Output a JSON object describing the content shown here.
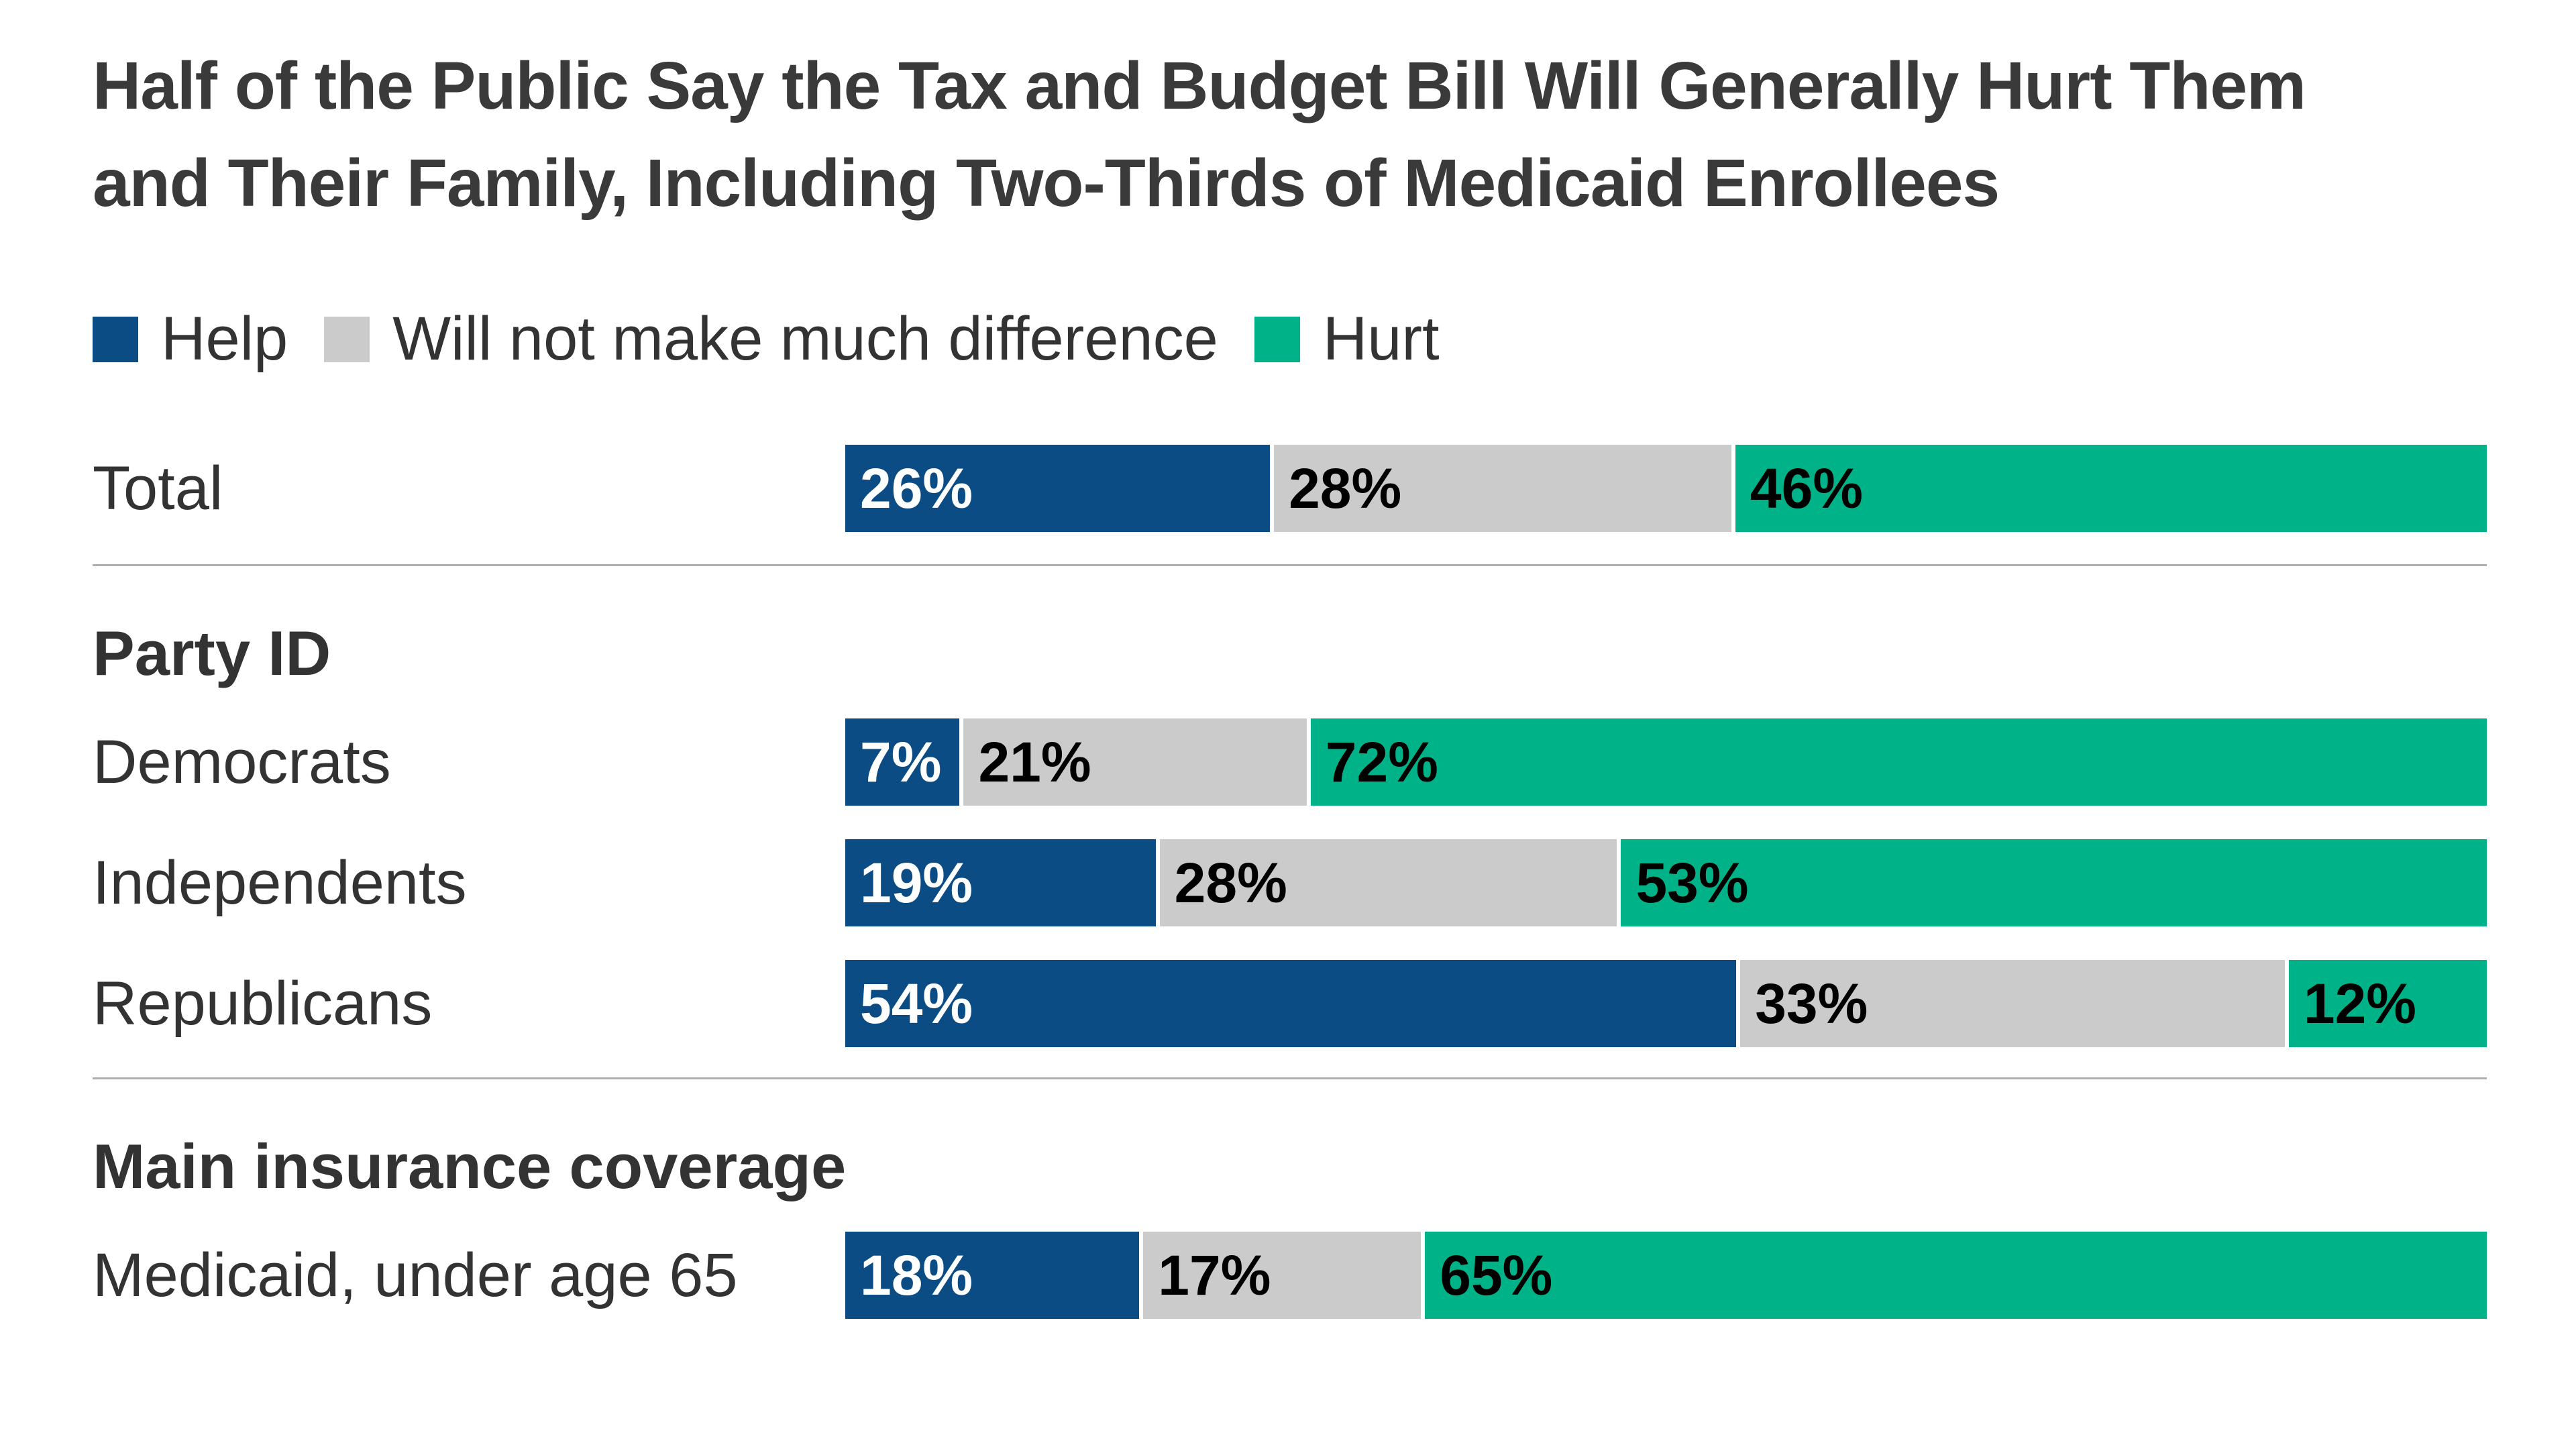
{
  "title": {
    "line1": "Half of the Public Say the Tax and Budget Bill Will Generally Hurt Them",
    "line2": "and Their Family, Including Two-Thirds of Medicaid Enrollees"
  },
  "legend": [
    {
      "label": "Help",
      "color": "#0b4c85"
    },
    {
      "label": "Will not make much difference",
      "color": "#cbcbcb"
    },
    {
      "label": "Hurt",
      "color": "#00b287"
    }
  ],
  "colors": {
    "help": "#0b4c85",
    "neutral": "#cbcbcb",
    "hurt": "#00b287",
    "title_text": "#3a3a3a",
    "body_text": "#333333",
    "divider": "#aeaeae",
    "label_on_help": "#ffffff",
    "label_on_neutral": "#000000",
    "label_on_hurt": "#000000"
  },
  "sections": {
    "party_header": "Party ID",
    "insurance_header": "Main insurance coverage"
  },
  "rows": {
    "total": {
      "label": "Total",
      "segments": [
        {
          "series": "Help",
          "value": 26,
          "label": "26%",
          "color": "#0b4c85",
          "text": "#ffffff"
        },
        {
          "series": "Will not make much difference",
          "value": 28,
          "label": "28%",
          "color": "#cbcbcb",
          "text": "#000000"
        },
        {
          "series": "Hurt",
          "value": 46,
          "label": "46%",
          "color": "#00b287",
          "text": "#000000"
        }
      ]
    },
    "democrats": {
      "label": "Democrats",
      "segments": [
        {
          "series": "Help",
          "value": 7,
          "label": "7%",
          "color": "#0b4c85",
          "text": "#ffffff"
        },
        {
          "series": "Will not make much difference",
          "value": 21,
          "label": "21%",
          "color": "#cbcbcb",
          "text": "#000000"
        },
        {
          "series": "Hurt",
          "value": 72,
          "label": "72%",
          "color": "#00b287",
          "text": "#000000"
        }
      ]
    },
    "independents": {
      "label": "Independents",
      "segments": [
        {
          "series": "Help",
          "value": 19,
          "label": "19%",
          "color": "#0b4c85",
          "text": "#ffffff"
        },
        {
          "series": "Will not make much difference",
          "value": 28,
          "label": "28%",
          "color": "#cbcbcb",
          "text": "#000000"
        },
        {
          "series": "Hurt",
          "value": 53,
          "label": "53%",
          "color": "#00b287",
          "text": "#000000"
        }
      ]
    },
    "republicans": {
      "label": "Republicans",
      "segments": [
        {
          "series": "Help",
          "value": 54,
          "label": "54%",
          "color": "#0b4c85",
          "text": "#ffffff"
        },
        {
          "series": "Will not make much difference",
          "value": 33,
          "label": "33%",
          "color": "#cbcbcb",
          "text": "#000000"
        },
        {
          "series": "Hurt",
          "value": 12,
          "label": "12%",
          "color": "#00b287",
          "text": "#000000"
        }
      ]
    },
    "medicaid": {
      "label": "Medicaid, under age 65",
      "segments": [
        {
          "series": "Help",
          "value": 18,
          "label": "18%",
          "color": "#0b4c85",
          "text": "#ffffff"
        },
        {
          "series": "Will not make much difference",
          "value": 17,
          "label": "17%",
          "color": "#cbcbcb",
          "text": "#000000"
        },
        {
          "series": "Hurt",
          "value": 65,
          "label": "65%",
          "color": "#00b287",
          "text": "#000000"
        }
      ]
    }
  },
  "chart_data": {
    "type": "bar",
    "orientation": "horizontal",
    "stacked": true,
    "title": "Half of the Public Say the Tax and Budget Bill Will Generally Hurt Them and Their Family, Including Two-Thirds of Medicaid Enrollees",
    "categories": [
      "Total",
      "Democrats",
      "Independents",
      "Republicans",
      "Medicaid, under age 65"
    ],
    "category_groups": [
      {
        "header": null,
        "categories": [
          "Total"
        ]
      },
      {
        "header": "Party ID",
        "categories": [
          "Democrats",
          "Independents",
          "Republicans"
        ]
      },
      {
        "header": "Main insurance coverage",
        "categories": [
          "Medicaid, under age 65"
        ]
      }
    ],
    "series": [
      {
        "name": "Help",
        "color": "#0b4c85",
        "values": [
          26,
          7,
          19,
          54,
          18
        ]
      },
      {
        "name": "Will not make much difference",
        "color": "#cbcbcb",
        "values": [
          28,
          21,
          28,
          33,
          17
        ]
      },
      {
        "name": "Hurt",
        "color": "#00b287",
        "values": [
          46,
          72,
          53,
          12,
          65
        ]
      }
    ],
    "value_format": "percent",
    "xlim": [
      0,
      100
    ],
    "legend_position": "top-left",
    "grid": false,
    "data_labels": true
  }
}
